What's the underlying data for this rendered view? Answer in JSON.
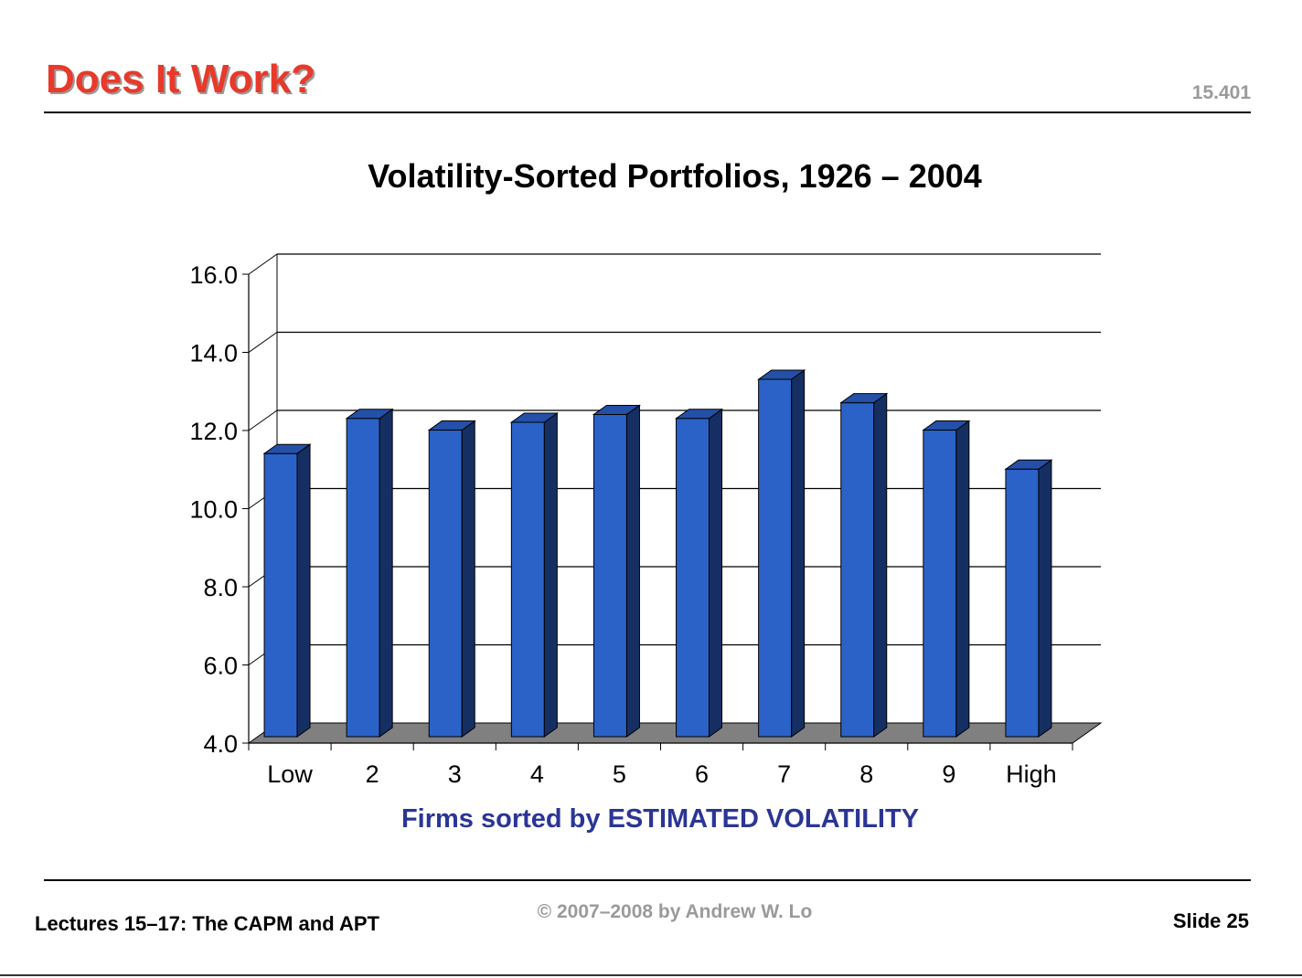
{
  "slide": {
    "title": "Does It Work?",
    "course_number": "15.401",
    "footer_left": "Lectures 15–17: The CAPM and APT",
    "footer_center": "© 2007–2008 by Andrew W. Lo",
    "footer_right": "Slide 25"
  },
  "colors": {
    "title": "#e8392a",
    "bar_front": "#2b62c8",
    "bar_top": "#2450a8",
    "bar_side": "#162f63",
    "floor": "#808080",
    "xlabel": "#2b3595"
  },
  "chart_data": {
    "type": "bar",
    "title": "Volatility-Sorted Portfolios, 1926 – 2004",
    "xlabel": "Firms sorted by ESTIMATED VOLATILITY",
    "ylabel": "",
    "categories": [
      "Low",
      "2",
      "3",
      "4",
      "5",
      "6",
      "7",
      "8",
      "9",
      "High"
    ],
    "values": [
      11.2,
      12.1,
      11.8,
      12.0,
      12.2,
      12.1,
      13.1,
      12.5,
      11.8,
      10.8
    ],
    "ylim": [
      4.0,
      16.0
    ],
    "yticks": [
      "4.0",
      "6.0",
      "8.0",
      "10.0",
      "12.0",
      "14.0",
      "16.0"
    ],
    "grid": true,
    "style": "3d-column",
    "legend": "none"
  }
}
